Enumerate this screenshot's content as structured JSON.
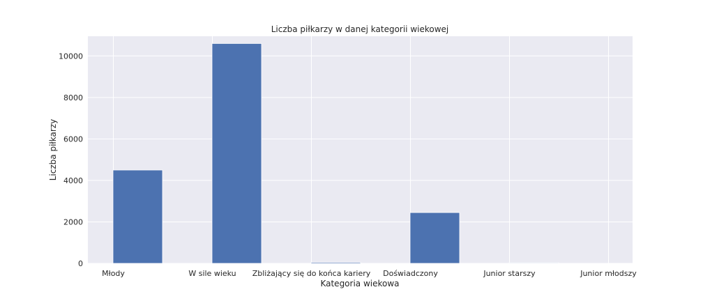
{
  "chart_data": {
    "type": "bar",
    "title": "Liczba piłkarzy w danej kategorii wiekowej",
    "xlabel": "Kategoria wiekowa",
    "ylabel": "Liczba piłkarzy",
    "categories": [
      "Młody",
      "W sile wieku",
      "Zbliżający się do końca kariery",
      "Doświadczony",
      "Junior starszy",
      "Junior młodszy"
    ],
    "values": [
      4500,
      10600,
      50,
      2450,
      30,
      5
    ],
    "ylim": [
      0,
      10950
    ],
    "yticks": [
      0,
      2000,
      4000,
      6000,
      8000,
      10000
    ],
    "grid": true,
    "bar_color": "#4c72b0",
    "background_color": "#eaeaf2"
  }
}
